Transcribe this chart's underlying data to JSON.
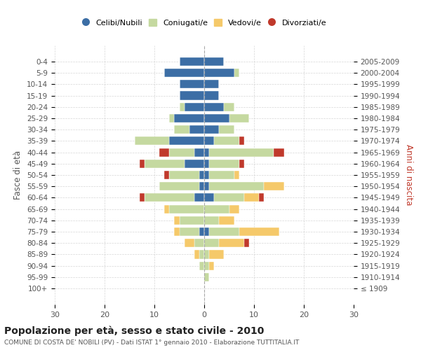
{
  "age_groups": [
    "100+",
    "95-99",
    "90-94",
    "85-89",
    "80-84",
    "75-79",
    "70-74",
    "65-69",
    "60-64",
    "55-59",
    "50-54",
    "45-49",
    "40-44",
    "35-39",
    "30-34",
    "25-29",
    "20-24",
    "15-19",
    "10-14",
    "5-9",
    "0-4"
  ],
  "birth_years": [
    "≤ 1909",
    "1910-1914",
    "1915-1919",
    "1920-1924",
    "1925-1929",
    "1930-1934",
    "1935-1939",
    "1940-1944",
    "1945-1949",
    "1950-1954",
    "1955-1959",
    "1960-1964",
    "1965-1969",
    "1970-1974",
    "1975-1979",
    "1980-1984",
    "1985-1989",
    "1990-1994",
    "1995-1999",
    "2000-2004",
    "2005-2009"
  ],
  "male": {
    "celibi": [
      0,
      0,
      0,
      0,
      0,
      1,
      0,
      0,
      2,
      1,
      1,
      4,
      2,
      7,
      3,
      6,
      4,
      5,
      5,
      8,
      5
    ],
    "coniugati": [
      0,
      0,
      1,
      1,
      2,
      4,
      5,
      7,
      10,
      8,
      6,
      8,
      5,
      7,
      3,
      1,
      1,
      0,
      0,
      0,
      0
    ],
    "vedovi": [
      0,
      0,
      0,
      1,
      2,
      1,
      1,
      1,
      0,
      0,
      0,
      0,
      0,
      0,
      0,
      0,
      0,
      0,
      0,
      0,
      0
    ],
    "divorziati": [
      0,
      0,
      0,
      0,
      0,
      0,
      0,
      0,
      1,
      0,
      1,
      1,
      2,
      0,
      0,
      0,
      0,
      0,
      0,
      0,
      0
    ]
  },
  "female": {
    "nubili": [
      0,
      0,
      0,
      0,
      0,
      1,
      0,
      0,
      2,
      1,
      1,
      1,
      1,
      2,
      3,
      5,
      4,
      3,
      3,
      6,
      4
    ],
    "coniugate": [
      0,
      1,
      1,
      1,
      3,
      6,
      3,
      5,
      6,
      11,
      5,
      6,
      13,
      5,
      3,
      4,
      2,
      0,
      0,
      1,
      0
    ],
    "vedove": [
      0,
      0,
      1,
      3,
      5,
      8,
      3,
      2,
      3,
      4,
      1,
      0,
      0,
      0,
      0,
      0,
      0,
      0,
      0,
      0,
      0
    ],
    "divorziate": [
      0,
      0,
      0,
      0,
      1,
      0,
      0,
      0,
      1,
      0,
      0,
      1,
      2,
      1,
      0,
      0,
      0,
      0,
      0,
      0,
      0
    ]
  },
  "colors": {
    "celibi_nubili": "#3c6ea5",
    "coniugati": "#c5d9a0",
    "vedovi": "#f5c96a",
    "divorziati": "#c0392b"
  },
  "xlim": 30,
  "title": "Popolazione per età, sesso e stato civile - 2010",
  "subtitle": "COMUNE DI COSTA DE' NOBILI (PV) - Dati ISTAT 1° gennaio 2010 - Elaborazione TUTTITALIA.IT",
  "ylabel_left": "Fasce di età",
  "ylabel_right": "Anni di nascita",
  "bg_color": "#ffffff",
  "grid_color": "#cccccc"
}
